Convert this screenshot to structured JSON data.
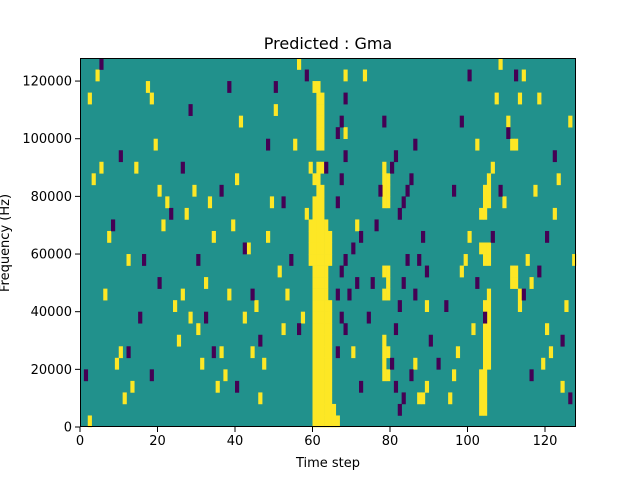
{
  "chart_data": {
    "type": "heatmap",
    "title": "Predicted : Gma",
    "xlabel": "Time step",
    "ylabel": "Frequency (Hz)",
    "xlim": [
      0,
      128
    ],
    "ylim": [
      0,
      128000
    ],
    "x_ticks": [
      0,
      20,
      40,
      60,
      80,
      100,
      120
    ],
    "y_ticks": [
      0,
      20000,
      40000,
      60000,
      80000,
      100000,
      120000
    ],
    "x_tick_labels": [
      "0",
      "20",
      "40",
      "60",
      "80",
      "100",
      "120"
    ],
    "y_tick_labels": [
      "0",
      "20000",
      "40000",
      "60000",
      "80000",
      "100000",
      "120000"
    ],
    "grid": false,
    "colormap": "viridis",
    "color_levels": {
      "-1": "#440154",
      "0": "#21918c",
      "1": "#fde725"
    },
    "background_level": 0,
    "n_columns": 128,
    "n_rows": 32,
    "value_levels": [
      -1,
      0,
      1
    ],
    "cells": [
      [
        60,
        0,
        1
      ],
      [
        61,
        0,
        1
      ],
      [
        62,
        0,
        1
      ],
      [
        63,
        0,
        1
      ],
      [
        64,
        0,
        1
      ],
      [
        65,
        0,
        1
      ],
      [
        66,
        0,
        1
      ],
      [
        60,
        1,
        1
      ],
      [
        61,
        1,
        1
      ],
      [
        62,
        1,
        1
      ],
      [
        63,
        1,
        1
      ],
      [
        64,
        1,
        1
      ],
      [
        65,
        1,
        1
      ],
      [
        60,
        2,
        1
      ],
      [
        61,
        2,
        1
      ],
      [
        62,
        2,
        1
      ],
      [
        63,
        2,
        1
      ],
      [
        64,
        2,
        1
      ],
      [
        60,
        3,
        1
      ],
      [
        61,
        3,
        1
      ],
      [
        62,
        3,
        1
      ],
      [
        63,
        3,
        1
      ],
      [
        64,
        3,
        1
      ],
      [
        60,
        4,
        1
      ],
      [
        61,
        4,
        1
      ],
      [
        62,
        4,
        1
      ],
      [
        63,
        4,
        1
      ],
      [
        64,
        4,
        1
      ],
      [
        60,
        5,
        1
      ],
      [
        61,
        5,
        1
      ],
      [
        62,
        5,
        1
      ],
      [
        63,
        5,
        1
      ],
      [
        64,
        5,
        1
      ],
      [
        60,
        6,
        1
      ],
      [
        61,
        6,
        1
      ],
      [
        62,
        6,
        1
      ],
      [
        63,
        6,
        1
      ],
      [
        64,
        6,
        1
      ],
      [
        60,
        7,
        1
      ],
      [
        61,
        7,
        1
      ],
      [
        62,
        7,
        1
      ],
      [
        63,
        7,
        1
      ],
      [
        64,
        7,
        1
      ],
      [
        60,
        8,
        1
      ],
      [
        61,
        8,
        1
      ],
      [
        62,
        8,
        1
      ],
      [
        63,
        8,
        1
      ],
      [
        64,
        8,
        1
      ],
      [
        60,
        9,
        1
      ],
      [
        61,
        9,
        1
      ],
      [
        62,
        9,
        1
      ],
      [
        63,
        9,
        1
      ],
      [
        64,
        9,
        1
      ],
      [
        60,
        10,
        1
      ],
      [
        61,
        10,
        1
      ],
      [
        62,
        10,
        1
      ],
      [
        63,
        10,
        1
      ],
      [
        64,
        10,
        1
      ],
      [
        60,
        11,
        1
      ],
      [
        61,
        11,
        1
      ],
      [
        62,
        11,
        1
      ],
      [
        63,
        11,
        1
      ],
      [
        60,
        12,
        1
      ],
      [
        61,
        12,
        1
      ],
      [
        62,
        12,
        1
      ],
      [
        63,
        12,
        1
      ],
      [
        60,
        13,
        1
      ],
      [
        61,
        13,
        1
      ],
      [
        62,
        13,
        1
      ],
      [
        63,
        13,
        1
      ],
      [
        59,
        14,
        1
      ],
      [
        60,
        14,
        1
      ],
      [
        61,
        14,
        1
      ],
      [
        62,
        14,
        1
      ],
      [
        63,
        14,
        1
      ],
      [
        64,
        14,
        1
      ],
      [
        59,
        15,
        1
      ],
      [
        60,
        15,
        1
      ],
      [
        61,
        15,
        1
      ],
      [
        62,
        15,
        1
      ],
      [
        63,
        15,
        1
      ],
      [
        64,
        15,
        1
      ],
      [
        59,
        16,
        1
      ],
      [
        60,
        16,
        1
      ],
      [
        61,
        16,
        1
      ],
      [
        62,
        16,
        1
      ],
      [
        63,
        16,
        1
      ],
      [
        64,
        16,
        1
      ],
      [
        59,
        17,
        1
      ],
      [
        60,
        17,
        1
      ],
      [
        61,
        17,
        1
      ],
      [
        62,
        17,
        1
      ],
      [
        63,
        17,
        1
      ],
      [
        60,
        18,
        1
      ],
      [
        61,
        18,
        1
      ],
      [
        62,
        18,
        1
      ],
      [
        60,
        19,
        1
      ],
      [
        61,
        19,
        1
      ],
      [
        62,
        19,
        1
      ],
      [
        61,
        20,
        1
      ],
      [
        62,
        20,
        1
      ],
      [
        60,
        21,
        1
      ],
      [
        61,
        21,
        1
      ],
      [
        61,
        22,
        1
      ],
      [
        62,
        22,
        1
      ],
      [
        61,
        24,
        1
      ],
      [
        62,
        24,
        1
      ],
      [
        61,
        25,
        1
      ],
      [
        62,
        25,
        1
      ],
      [
        61,
        26,
        1
      ],
      [
        62,
        26,
        1
      ],
      [
        61,
        27,
        1
      ],
      [
        62,
        27,
        1
      ],
      [
        61,
        28,
        1
      ],
      [
        62,
        28,
        1
      ],
      [
        60,
        29,
        1
      ],
      [
        61,
        29,
        1
      ],
      [
        103,
        1,
        1
      ],
      [
        104,
        1,
        1
      ],
      [
        103,
        2,
        1
      ],
      [
        104,
        2,
        1
      ],
      [
        103,
        3,
        1
      ],
      [
        104,
        3,
        1
      ],
      [
        103,
        4,
        1
      ],
      [
        104,
        4,
        1
      ],
      [
        104,
        5,
        1
      ],
      [
        105,
        5,
        1
      ],
      [
        104,
        6,
        1
      ],
      [
        105,
        6,
        1
      ],
      [
        104,
        7,
        1
      ],
      [
        105,
        7,
        1
      ],
      [
        104,
        8,
        1
      ],
      [
        105,
        8,
        1
      ],
      [
        104,
        9,
        1
      ],
      [
        105,
        9,
        1
      ],
      [
        104,
        10,
        1
      ],
      [
        105,
        10,
        1
      ],
      [
        105,
        11,
        1
      ],
      [
        104,
        14,
        1
      ],
      [
        105,
        14,
        1
      ],
      [
        103,
        15,
        1
      ],
      [
        104,
        15,
        1
      ],
      [
        105,
        15,
        1
      ],
      [
        103,
        18,
        1
      ],
      [
        104,
        18,
        1
      ],
      [
        104,
        19,
        1
      ],
      [
        105,
        19,
        1
      ],
      [
        104,
        20,
        1
      ],
      [
        105,
        20,
        1
      ],
      [
        105,
        21,
        1
      ],
      [
        102,
        24,
        1
      ],
      [
        111,
        12,
        1
      ],
      [
        111,
        13,
        1
      ],
      [
        112,
        13,
        1
      ],
      [
        112,
        12,
        1
      ],
      [
        113,
        10,
        1
      ],
      [
        113,
        11,
        1
      ],
      [
        111,
        24,
        1
      ],
      [
        112,
        24,
        1
      ],
      [
        113,
        28,
        1
      ],
      [
        114,
        30,
        1
      ],
      [
        78,
        4,
        1
      ],
      [
        79,
        4,
        1
      ],
      [
        78,
        5,
        1
      ],
      [
        78,
        6,
        1
      ],
      [
        79,
        6,
        1
      ],
      [
        78,
        7,
        1
      ],
      [
        78,
        11,
        1
      ],
      [
        79,
        11,
        1
      ],
      [
        79,
        12,
        1
      ],
      [
        78,
        13,
        1
      ],
      [
        79,
        13,
        1
      ],
      [
        78,
        19,
        1
      ],
      [
        79,
        19,
        1
      ],
      [
        78,
        20,
        1
      ],
      [
        79,
        20,
        1
      ],
      [
        78,
        21,
        1
      ],
      [
        79,
        21,
        1
      ],
      [
        78,
        22,
        1
      ],
      [
        86,
        5,
        1
      ],
      [
        87,
        2,
        1
      ],
      [
        88,
        2,
        1
      ],
      [
        89,
        3,
        1
      ],
      [
        89,
        10,
        1
      ],
      [
        70,
        6,
        1
      ],
      [
        71,
        17,
        1
      ],
      [
        68,
        25,
        1
      ],
      [
        68,
        30,
        1
      ],
      [
        73,
        30,
        1
      ],
      [
        2,
        0,
        1
      ],
      [
        4,
        30,
        1
      ],
      [
        2,
        28,
        1
      ],
      [
        3,
        21,
        1
      ],
      [
        5,
        22,
        1
      ],
      [
        6,
        11,
        1
      ],
      [
        7,
        16,
        1
      ],
      [
        9,
        5,
        1
      ],
      [
        10,
        6,
        1
      ],
      [
        11,
        2,
        1
      ],
      [
        13,
        3,
        1
      ],
      [
        12,
        14,
        1
      ],
      [
        14,
        22,
        1
      ],
      [
        17,
        29,
        1
      ],
      [
        18,
        28,
        1
      ],
      [
        19,
        24,
        1
      ],
      [
        20,
        20,
        1
      ],
      [
        21,
        17,
        1
      ],
      [
        22,
        19,
        1
      ],
      [
        24,
        10,
        1
      ],
      [
        25,
        7,
        1
      ],
      [
        26,
        11,
        1
      ],
      [
        27,
        18,
        1
      ],
      [
        28,
        9,
        1
      ],
      [
        29,
        20,
        1
      ],
      [
        30,
        8,
        1
      ],
      [
        31,
        5,
        1
      ],
      [
        32,
        12,
        1
      ],
      [
        33,
        19,
        1
      ],
      [
        34,
        16,
        1
      ],
      [
        35,
        3,
        1
      ],
      [
        36,
        6,
        1
      ],
      [
        37,
        4,
        1
      ],
      [
        38,
        11,
        1
      ],
      [
        39,
        17,
        1
      ],
      [
        40,
        21,
        1
      ],
      [
        41,
        26,
        1
      ],
      [
        42,
        9,
        1
      ],
      [
        43,
        15,
        1
      ],
      [
        44,
        6,
        1
      ],
      [
        45,
        10,
        1
      ],
      [
        46,
        2,
        1
      ],
      [
        47,
        5,
        1
      ],
      [
        48,
        16,
        1
      ],
      [
        49,
        19,
        1
      ],
      [
        50,
        27,
        1
      ],
      [
        51,
        13,
        1
      ],
      [
        52,
        8,
        1
      ],
      [
        53,
        11,
        1
      ],
      [
        55,
        24,
        1
      ],
      [
        56,
        31,
        1
      ],
      [
        57,
        9,
        1
      ],
      [
        58,
        18,
        1
      ],
      [
        59,
        22,
        1
      ],
      [
        95,
        2,
        1
      ],
      [
        96,
        4,
        1
      ],
      [
        97,
        6,
        1
      ],
      [
        98,
        13,
        1
      ],
      [
        99,
        14,
        1
      ],
      [
        100,
        16,
        1
      ],
      [
        101,
        8,
        1
      ],
      [
        106,
        22,
        1
      ],
      [
        107,
        28,
        1
      ],
      [
        108,
        31,
        1
      ],
      [
        109,
        19,
        1
      ],
      [
        110,
        26,
        1
      ],
      [
        115,
        14,
        1
      ],
      [
        116,
        12,
        1
      ],
      [
        117,
        20,
        1
      ],
      [
        118,
        28,
        1
      ],
      [
        119,
        5,
        1
      ],
      [
        120,
        8,
        1
      ],
      [
        121,
        6,
        1
      ],
      [
        122,
        18,
        1
      ],
      [
        123,
        21,
        1
      ],
      [
        124,
        3,
        1
      ],
      [
        125,
        10,
        1
      ],
      [
        126,
        26,
        1
      ],
      [
        127,
        14,
        1
      ],
      [
        63,
        22,
        -1
      ],
      [
        66,
        6,
        -1
      ],
      [
        67,
        9,
        -1
      ],
      [
        68,
        8,
        -1
      ],
      [
        66,
        11,
        -1
      ],
      [
        67,
        13,
        -1
      ],
      [
        68,
        14,
        -1
      ],
      [
        66,
        19,
        -1
      ],
      [
        67,
        21,
        -1
      ],
      [
        68,
        23,
        -1
      ],
      [
        66,
        25,
        -1
      ],
      [
        67,
        26,
        -1
      ],
      [
        68,
        28,
        -1
      ],
      [
        69,
        11,
        -1
      ],
      [
        70,
        15,
        -1
      ],
      [
        71,
        12,
        -1
      ],
      [
        72,
        16,
        -1
      ],
      [
        72,
        3,
        -1
      ],
      [
        74,
        9,
        -1
      ],
      [
        75,
        12,
        -1
      ],
      [
        76,
        17,
        -1
      ],
      [
        77,
        20,
        -1
      ],
      [
        78,
        26,
        -1
      ],
      [
        80,
        5,
        -1
      ],
      [
        81,
        8,
        -1
      ],
      [
        82,
        10,
        -1
      ],
      [
        83,
        12,
        -1
      ],
      [
        84,
        14,
        -1
      ],
      [
        80,
        22,
        -1
      ],
      [
        81,
        23,
        -1
      ],
      [
        82,
        18,
        -1
      ],
      [
        83,
        19,
        -1
      ],
      [
        84,
        20,
        -1
      ],
      [
        85,
        21,
        -1
      ],
      [
        86,
        24,
        -1
      ],
      [
        81,
        3,
        -1
      ],
      [
        82,
        1,
        -1
      ],
      [
        83,
        2,
        -1
      ],
      [
        85,
        4,
        -1
      ],
      [
        86,
        11,
        -1
      ],
      [
        87,
        14,
        -1
      ],
      [
        88,
        16,
        -1
      ],
      [
        89,
        13,
        -1
      ],
      [
        90,
        7,
        -1
      ],
      [
        1,
        4,
        -1
      ],
      [
        5,
        31,
        -1
      ],
      [
        8,
        17,
        -1
      ],
      [
        10,
        23,
        -1
      ],
      [
        12,
        6,
        -1
      ],
      [
        15,
        9,
        -1
      ],
      [
        16,
        14,
        -1
      ],
      [
        18,
        4,
        -1
      ],
      [
        20,
        12,
        -1
      ],
      [
        23,
        18,
        -1
      ],
      [
        26,
        22,
        -1
      ],
      [
        28,
        27,
        -1
      ],
      [
        30,
        14,
        -1
      ],
      [
        32,
        9,
        -1
      ],
      [
        34,
        6,
        -1
      ],
      [
        36,
        20,
        -1
      ],
      [
        38,
        29,
        -1
      ],
      [
        40,
        3,
        -1
      ],
      [
        42,
        15,
        -1
      ],
      [
        44,
        11,
        -1
      ],
      [
        46,
        7,
        -1
      ],
      [
        48,
        24,
        -1
      ],
      [
        50,
        29,
        -1
      ],
      [
        52,
        19,
        -1
      ],
      [
        54,
        14,
        -1
      ],
      [
        56,
        8,
        -1
      ],
      [
        58,
        30,
        -1
      ],
      [
        92,
        5,
        -1
      ],
      [
        94,
        10,
        -1
      ],
      [
        96,
        20,
        -1
      ],
      [
        98,
        26,
        -1
      ],
      [
        100,
        30,
        -1
      ],
      [
        102,
        12,
        -1
      ],
      [
        104,
        9,
        -1
      ],
      [
        106,
        16,
        -1
      ],
      [
        108,
        20,
        -1
      ],
      [
        110,
        25,
        -1
      ],
      [
        112,
        30,
        -1
      ],
      [
        114,
        11,
        -1
      ],
      [
        116,
        4,
        -1
      ],
      [
        118,
        13,
        -1
      ],
      [
        120,
        16,
        -1
      ],
      [
        122,
        23,
        -1
      ],
      [
        124,
        7,
        -1
      ],
      [
        126,
        2,
        -1
      ]
    ]
  }
}
